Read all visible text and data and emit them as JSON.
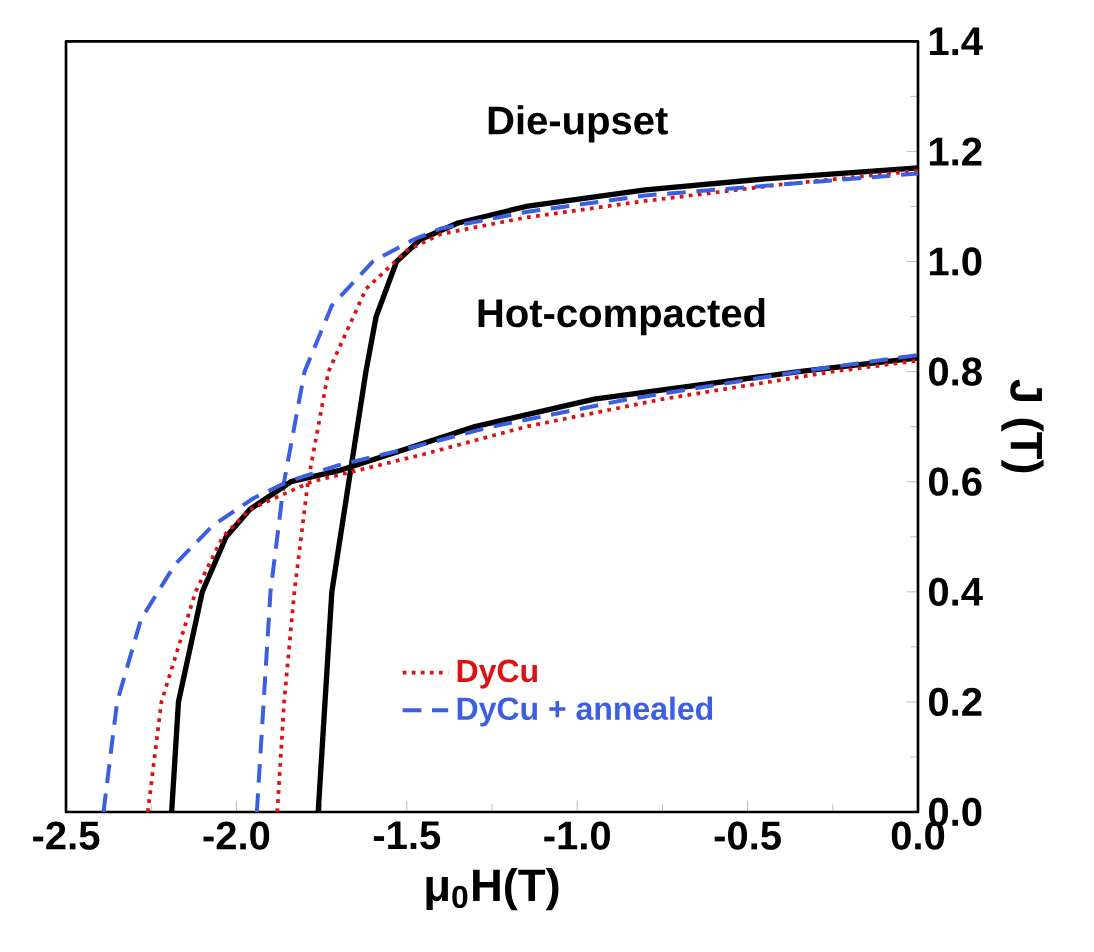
{
  "chart_data": {
    "type": "line",
    "xlabel": "μ$_{0}$H(T)",
    "ylabel": "J (T)",
    "xlim": [
      -2.5,
      0.0
    ],
    "ylim": [
      0.0,
      1.4
    ],
    "xticks": [
      {
        "value": -2.5,
        "label": "-2.5"
      },
      {
        "value": -2.0,
        "label": "-2.0"
      },
      {
        "value": -1.5,
        "label": "-1.5"
      },
      {
        "value": -1.0,
        "label": "-1.0"
      },
      {
        "value": -0.5,
        "label": "-0.5"
      },
      {
        "value": 0.0,
        "label": "0.0"
      }
    ],
    "yticks": [
      {
        "value": 0.0,
        "label": "0.0"
      },
      {
        "value": 0.2,
        "label": "0.2"
      },
      {
        "value": 0.4,
        "label": "0.4"
      },
      {
        "value": 0.6,
        "label": "0.6"
      },
      {
        "value": 0.8,
        "label": "0.8"
      },
      {
        "value": 1.0,
        "label": "1.0"
      },
      {
        "value": 1.2,
        "label": "1.2"
      },
      {
        "value": 1.4,
        "label": "1.4"
      }
    ],
    "legend": "bottom",
    "grid": false,
    "marker": "none",
    "annotations": [
      "Die-upset",
      "Hot-compacted"
    ],
    "series": [
      {
        "color": "#000000",
        "line_style": "solid",
        "x": [
          -1.76,
          -1.74,
          -1.72,
          -1.67,
          -1.62,
          -1.59,
          -1.53,
          -1.46,
          -1.35,
          -1.15,
          -0.8,
          -0.45,
          0.0
        ],
        "values": [
          0.0,
          0.2,
          0.4,
          0.6,
          0.8,
          0.9,
          1.0,
          1.04,
          1.07,
          1.1,
          1.13,
          1.15,
          1.17
        ]
      },
      {
        "name": "DyCu",
        "color": "#dd1111",
        "line_style": "dotted",
        "x": [
          -1.88,
          -1.86,
          -1.83,
          -1.79,
          -1.73,
          -1.62,
          -1.5,
          -1.4,
          -1.15,
          -0.8,
          -0.4,
          0.0
        ],
        "values": [
          0.0,
          0.2,
          0.4,
          0.6,
          0.8,
          0.95,
          1.02,
          1.05,
          1.08,
          1.11,
          1.14,
          1.165
        ]
      },
      {
        "name": "DyCu + annealed",
        "color": "#3b5fe0",
        "line_style": "dashed",
        "x": [
          -1.94,
          -1.92,
          -1.9,
          -1.86,
          -1.8,
          -1.72,
          -1.6,
          -1.48,
          -1.4,
          -1.15,
          -0.8,
          -0.4,
          0.0
        ],
        "values": [
          0.0,
          0.2,
          0.4,
          0.6,
          0.8,
          0.92,
          1.0,
          1.04,
          1.06,
          1.09,
          1.12,
          1.14,
          1.16
        ]
      },
      {
        "color": "#000000",
        "line_style": "solid",
        "x": [
          -2.19,
          -2.17,
          -2.1,
          -2.03,
          -1.96,
          -1.84,
          -1.7,
          -1.55,
          -1.3,
          -0.95,
          -0.35,
          0.0
        ],
        "values": [
          0.0,
          0.2,
          0.4,
          0.5,
          0.55,
          0.6,
          0.62,
          0.65,
          0.7,
          0.75,
          0.8,
          0.825
        ]
      },
      {
        "color": "#dd1111",
        "line_style": "dotted",
        "x": [
          -2.26,
          -2.22,
          -2.12,
          -2.04,
          -1.96,
          -1.78,
          -1.45,
          -1.15,
          -0.75,
          -0.25,
          0.0
        ],
        "values": [
          0.0,
          0.2,
          0.4,
          0.5,
          0.55,
          0.6,
          0.65,
          0.7,
          0.75,
          0.8,
          0.82
        ]
      },
      {
        "color": "#3b5fe0",
        "line_style": "dashed",
        "x": [
          -2.39,
          -2.35,
          -2.28,
          -2.18,
          -2.07,
          -1.95,
          -1.85,
          -1.7,
          -1.5,
          -1.25,
          -0.85,
          -0.35,
          0.0
        ],
        "values": [
          0.0,
          0.2,
          0.35,
          0.45,
          0.52,
          0.57,
          0.6,
          0.63,
          0.66,
          0.7,
          0.75,
          0.8,
          0.83
        ]
      }
    ]
  }
}
